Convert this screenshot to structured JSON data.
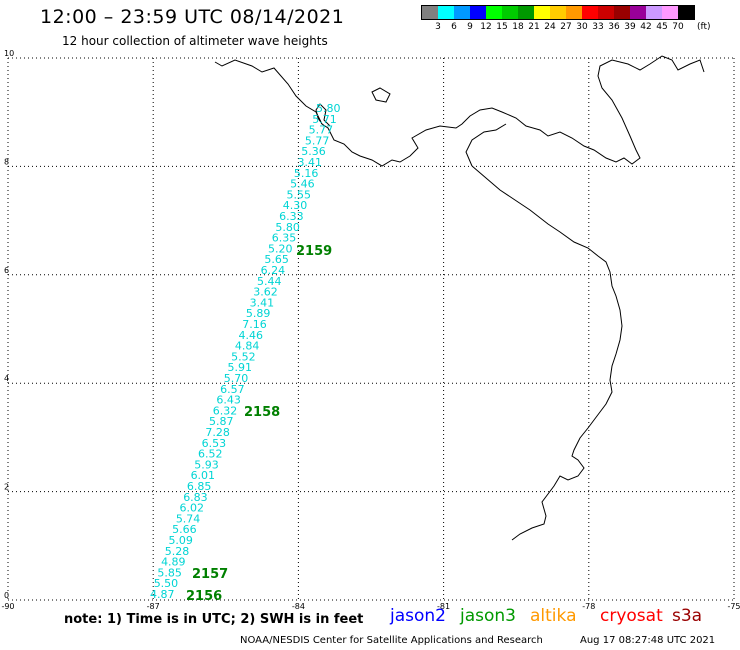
{
  "header": {
    "title": "12:00 – 23:59 UTC 08/14/2021",
    "subtitle": "12 hour collection of altimeter wave heights"
  },
  "color_scale": {
    "labels": [
      "3",
      "6",
      "9",
      "12",
      "15",
      "18",
      "21",
      "24",
      "27",
      "30",
      "33",
      "36",
      "39",
      "42",
      "45",
      "70"
    ],
    "unit": "(ft)",
    "colors": [
      "#808080",
      "#00ffff",
      "#0099ff",
      "#0000ff",
      "#00ff00",
      "#00cc00",
      "#009900",
      "#ffff00",
      "#ffcc00",
      "#ff9900",
      "#ff0000",
      "#cc0000",
      "#990000",
      "#990099",
      "#cc99ff",
      "#ff99ff",
      "#000000"
    ]
  },
  "map": {
    "lon_ticks": [
      "-90",
      "-87",
      "-84",
      "-81",
      "-78",
      "-75"
    ],
    "lat_ticks": [
      "0",
      "2",
      "4",
      "6",
      "8",
      "10"
    ],
    "track": {
      "color": "#00d4d4",
      "swh_values": [
        "5.80",
        "5.71",
        "5.77",
        "5.77",
        "5.36",
        "3.41",
        "5.16",
        "5.46",
        "5.55",
        "4.30",
        "6.33",
        "5.80",
        "6.35",
        "5.20",
        "5.65",
        "6.24",
        "5.44",
        "3.62",
        "3.41",
        "5.89",
        "7.16",
        "4.46",
        "4.84",
        "5.52",
        "5.91",
        "5.70",
        "6.57",
        "6.43",
        "6.32",
        "5.87",
        "7.28",
        "6.53",
        "6.52",
        "5.93",
        "6.01",
        "6.85",
        "6.83",
        "6.02",
        "5.74",
        "5.66",
        "5.09",
        "5.28",
        "4.89",
        "5.85",
        "5.50",
        "4.87"
      ]
    },
    "pass_labels": [
      "2159",
      "2158",
      "2157",
      "2156"
    ]
  },
  "footer": {
    "note": "note:  1) Time is in UTC;  2) SWH is in feet",
    "legend": [
      {
        "name": "jason2",
        "color": "#0000ff"
      },
      {
        "name": "jason3",
        "color": "#009900"
      },
      {
        "name": "altika",
        "color": "#ff9900"
      },
      {
        "name": "cryosat",
        "color": "#ff0000"
      },
      {
        "name": "s3a",
        "color": "#990000"
      }
    ],
    "credit": "NOAA/NESDIS Center for Satellite Applications and Research",
    "timestamp": "Aug 17 08:27:48 UTC 2021"
  }
}
